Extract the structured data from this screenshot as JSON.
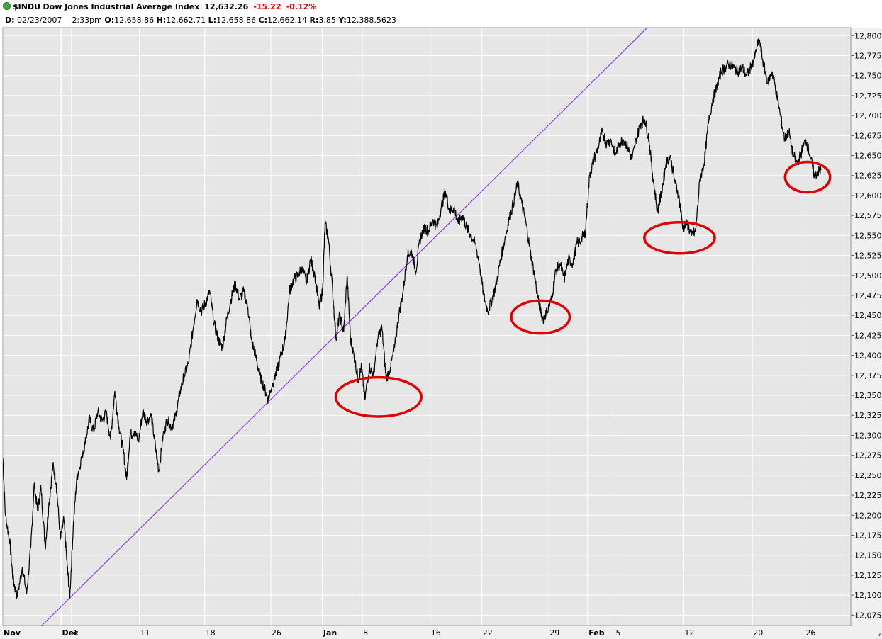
{
  "header": {
    "symbol": "$INDU",
    "name": "Dow Jones Industrial Average Index",
    "last": "12,632.26",
    "change": "-15.22",
    "change_pct": "-0.12%",
    "date": "02/23/2007",
    "time": "2:33pm",
    "open": "12,658.86",
    "high": "12,662.71",
    "low": "12,658.86",
    "close": "12,662.14",
    "range": "3.85",
    "y": "12,388.5623"
  },
  "chart_data": {
    "type": "line",
    "ylim": [
      12062,
      12810
    ],
    "xlim": [
      0,
      100
    ],
    "y_ticks": [
      {
        "value": 12800,
        "label": "12,800"
      },
      {
        "value": 12775,
        "label": "12,775"
      },
      {
        "value": 12750,
        "label": "12,750"
      },
      {
        "value": 12725,
        "label": "12,725"
      },
      {
        "value": 12700,
        "label": "12,700"
      },
      {
        "value": 12675,
        "label": "12,675"
      },
      {
        "value": 12650,
        "label": "12,650"
      },
      {
        "value": 12625,
        "label": "12,625"
      },
      {
        "value": 12600,
        "label": "12,600"
      },
      {
        "value": 12575,
        "label": "12,575"
      },
      {
        "value": 12550,
        "label": "12,550"
      },
      {
        "value": 12525,
        "label": "12,525"
      },
      {
        "value": 12500,
        "label": "12,500"
      },
      {
        "value": 12475,
        "label": "12,475"
      },
      {
        "value": 12450,
        "label": "12,450"
      },
      {
        "value": 12425,
        "label": "12,425"
      },
      {
        "value": 12400,
        "label": "12,400"
      },
      {
        "value": 12375,
        "label": "12,375"
      },
      {
        "value": 12350,
        "label": "12,350"
      },
      {
        "value": 12325,
        "label": "12,325"
      },
      {
        "value": 12300,
        "label": "12,300"
      },
      {
        "value": 12275,
        "label": "12,275"
      },
      {
        "value": 12250,
        "label": "12,250"
      },
      {
        "value": 12225,
        "label": "12,225"
      },
      {
        "value": 12200,
        "label": "12,200"
      },
      {
        "value": 12175,
        "label": "12,175"
      },
      {
        "value": 12150,
        "label": "12,150"
      },
      {
        "value": 12125,
        "label": "12,125"
      },
      {
        "value": 12100,
        "label": "12,100"
      },
      {
        "value": 12075,
        "label": "12,075"
      }
    ],
    "x_ticks": [
      {
        "x": 0.0,
        "label": "Nov",
        "bold": true
      },
      {
        "x": 6.9,
        "label": "Dec",
        "bold": true
      },
      {
        "x": 8.1,
        "label": "4",
        "bold": false
      },
      {
        "x": 16.1,
        "label": "11",
        "bold": false
      },
      {
        "x": 23.8,
        "label": "18",
        "bold": false
      },
      {
        "x": 31.6,
        "label": "26",
        "bold": false
      },
      {
        "x": 37.7,
        "label": "Jan",
        "bold": true
      },
      {
        "x": 42.4,
        "label": "8",
        "bold": false
      },
      {
        "x": 50.4,
        "label": "16",
        "bold": false
      },
      {
        "x": 56.5,
        "label": "22",
        "bold": false
      },
      {
        "x": 64.4,
        "label": "29",
        "bold": false
      },
      {
        "x": 69.0,
        "label": "Feb",
        "bold": true
      },
      {
        "x": 72.2,
        "label": "5",
        "bold": false
      },
      {
        "x": 80.3,
        "label": "12",
        "bold": false
      },
      {
        "x": 88.4,
        "label": "20",
        "bold": false
      },
      {
        "x": 94.6,
        "label": "26",
        "bold": false
      }
    ],
    "series": [
      {
        "values": [
          [
            0,
            12272
          ],
          [
            0.3,
            12200
          ],
          [
            0.8,
            12168
          ],
          [
            1.2,
            12120
          ],
          [
            1.7,
            12098
          ],
          [
            2.3,
            12135
          ],
          [
            2.8,
            12102
          ],
          [
            3.3,
            12160
          ],
          [
            3.7,
            12240
          ],
          [
            4.1,
            12205
          ],
          [
            4.5,
            12235
          ],
          [
            5.0,
            12160
          ],
          [
            5.4,
            12210
          ],
          [
            5.9,
            12262
          ],
          [
            6.3,
            12240
          ],
          [
            6.8,
            12170
          ],
          [
            7.2,
            12195
          ],
          [
            7.6,
            12135
          ],
          [
            7.9,
            12098
          ],
          [
            8.3,
            12185
          ],
          [
            8.7,
            12245
          ],
          [
            9.2,
            12268
          ],
          [
            9.7,
            12290
          ],
          [
            10.2,
            12320
          ],
          [
            10.7,
            12305
          ],
          [
            11.2,
            12330
          ],
          [
            11.7,
            12318
          ],
          [
            12.2,
            12328
          ],
          [
            12.7,
            12295
          ],
          [
            13.2,
            12355
          ],
          [
            13.7,
            12310
          ],
          [
            14.2,
            12282
          ],
          [
            14.6,
            12245
          ],
          [
            15.0,
            12300
          ],
          [
            15.5,
            12305
          ],
          [
            16.0,
            12292
          ],
          [
            16.5,
            12330
          ],
          [
            17.0,
            12318
          ],
          [
            17.5,
            12325
          ],
          [
            18.0,
            12285
          ],
          [
            18.4,
            12255
          ],
          [
            18.9,
            12300
          ],
          [
            19.4,
            12320
          ],
          [
            19.9,
            12310
          ],
          [
            20.4,
            12325
          ],
          [
            20.9,
            12355
          ],
          [
            21.4,
            12375
          ],
          [
            21.9,
            12390
          ],
          [
            22.4,
            12430
          ],
          [
            22.9,
            12470
          ],
          [
            23.4,
            12455
          ],
          [
            23.9,
            12465
          ],
          [
            24.4,
            12480
          ],
          [
            24.9,
            12440
          ],
          [
            25.4,
            12420
          ],
          [
            25.9,
            12410
          ],
          [
            26.4,
            12445
          ],
          [
            26.9,
            12470
          ],
          [
            27.4,
            12490
          ],
          [
            27.9,
            12470
          ],
          [
            28.4,
            12480
          ],
          [
            28.9,
            12460
          ],
          [
            29.3,
            12420
          ],
          [
            29.8,
            12400
          ],
          [
            30.3,
            12375
          ],
          [
            30.8,
            12360
          ],
          [
            31.3,
            12345
          ],
          [
            31.8,
            12365
          ],
          [
            32.3,
            12380
          ],
          [
            32.8,
            12400
          ],
          [
            33.3,
            12420
          ],
          [
            33.8,
            12480
          ],
          [
            34.3,
            12495
          ],
          [
            34.8,
            12500
          ],
          [
            35.3,
            12510
          ],
          [
            35.8,
            12490
          ],
          [
            36.3,
            12520
          ],
          [
            36.8,
            12500
          ],
          [
            37.3,
            12460
          ],
          [
            37.7,
            12480
          ],
          [
            38.0,
            12565
          ],
          [
            38.4,
            12545
          ],
          [
            38.9,
            12480
          ],
          [
            39.3,
            12420
          ],
          [
            39.7,
            12450
          ],
          [
            40.2,
            12430
          ],
          [
            40.6,
            12500
          ],
          [
            41.0,
            12420
          ],
          [
            41.5,
            12395
          ],
          [
            41.9,
            12370
          ],
          [
            42.3,
            12385
          ],
          [
            42.7,
            12345
          ],
          [
            43.2,
            12385
          ],
          [
            43.7,
            12375
          ],
          [
            44.2,
            12420
          ],
          [
            44.7,
            12435
          ],
          [
            45.2,
            12370
          ],
          [
            45.7,
            12385
          ],
          [
            46.2,
            12410
          ],
          [
            46.7,
            12450
          ],
          [
            47.2,
            12480
          ],
          [
            47.7,
            12525
          ],
          [
            48.2,
            12530
          ],
          [
            48.7,
            12505
          ],
          [
            49.2,
            12545
          ],
          [
            49.7,
            12560
          ],
          [
            50.2,
            12555
          ],
          [
            50.7,
            12570
          ],
          [
            51.2,
            12560
          ],
          [
            51.7,
            12585
          ],
          [
            52.2,
            12605
          ],
          [
            52.7,
            12580
          ],
          [
            53.2,
            12585
          ],
          [
            53.7,
            12565
          ],
          [
            54.2,
            12575
          ],
          [
            54.7,
            12560
          ],
          [
            55.2,
            12550
          ],
          [
            55.7,
            12540
          ],
          [
            56.2,
            12515
          ],
          [
            56.7,
            12475
          ],
          [
            57.2,
            12455
          ],
          [
            57.7,
            12470
          ],
          [
            58.2,
            12490
          ],
          [
            58.7,
            12520
          ],
          [
            59.2,
            12545
          ],
          [
            59.7,
            12570
          ],
          [
            60.2,
            12590
          ],
          [
            60.7,
            12615
          ],
          [
            61.2,
            12590
          ],
          [
            61.7,
            12565
          ],
          [
            62.2,
            12530
          ],
          [
            62.7,
            12500
          ],
          [
            63.2,
            12465
          ],
          [
            63.7,
            12445
          ],
          [
            64.2,
            12455
          ],
          [
            64.7,
            12470
          ],
          [
            65.2,
            12505
          ],
          [
            65.7,
            12515
          ],
          [
            66.2,
            12495
          ],
          [
            66.7,
            12520
          ],
          [
            67.2,
            12515
          ],
          [
            67.7,
            12540
          ],
          [
            68.2,
            12545
          ],
          [
            68.7,
            12555
          ],
          [
            69.2,
            12625
          ],
          [
            69.7,
            12645
          ],
          [
            70.2,
            12660
          ],
          [
            70.7,
            12680
          ],
          [
            71.2,
            12665
          ],
          [
            71.7,
            12670
          ],
          [
            72.2,
            12650
          ],
          [
            72.7,
            12665
          ],
          [
            73.2,
            12670
          ],
          [
            73.7,
            12660
          ],
          [
            74.2,
            12645
          ],
          [
            74.7,
            12670
          ],
          [
            75.2,
            12690
          ],
          [
            75.7,
            12695
          ],
          [
            76.2,
            12670
          ],
          [
            76.7,
            12620
          ],
          [
            77.2,
            12580
          ],
          [
            77.7,
            12605
          ],
          [
            78.2,
            12640
          ],
          [
            78.7,
            12650
          ],
          [
            79.2,
            12620
          ],
          [
            79.7,
            12600
          ],
          [
            80.2,
            12560
          ],
          [
            80.7,
            12565
          ],
          [
            81.2,
            12550
          ],
          [
            81.7,
            12555
          ],
          [
            82.2,
            12620
          ],
          [
            82.7,
            12640
          ],
          [
            83.2,
            12690
          ],
          [
            83.7,
            12720
          ],
          [
            84.2,
            12735
          ],
          [
            84.7,
            12755
          ],
          [
            85.2,
            12760
          ],
          [
            85.7,
            12765
          ],
          [
            86.2,
            12760
          ],
          [
            86.7,
            12755
          ],
          [
            87.2,
            12760
          ],
          [
            87.7,
            12750
          ],
          [
            88.2,
            12760
          ],
          [
            88.7,
            12775
          ],
          [
            89.2,
            12795
          ],
          [
            89.7,
            12765
          ],
          [
            90.2,
            12740
          ],
          [
            90.7,
            12755
          ],
          [
            91.2,
            12730
          ],
          [
            91.7,
            12700
          ],
          [
            92.2,
            12670
          ],
          [
            92.7,
            12680
          ],
          [
            93.2,
            12650
          ],
          [
            93.7,
            12640
          ],
          [
            94.2,
            12655
          ],
          [
            94.7,
            12670
          ],
          [
            95.2,
            12650
          ],
          [
            95.7,
            12625
          ],
          [
            96.2,
            12630
          ],
          [
            96.5,
            12632
          ]
        ]
      }
    ],
    "trendline": {
      "from": [
        4.6,
        12062
      ],
      "to": [
        76.0,
        12810
      ]
    },
    "circles": [
      {
        "cx": 44.3,
        "cy": 12348,
        "rx": 5.05,
        "ry": 24.5
      },
      {
        "cx": 63.4,
        "cy": 12448,
        "rx": 3.45,
        "ry": 20.5
      },
      {
        "cx": 79.8,
        "cy": 12547,
        "rx": 4.15,
        "ry": 19.5
      },
      {
        "cx": 94.9,
        "cy": 12623,
        "rx": 2.65,
        "ry": 19.0
      }
    ],
    "grid": true
  }
}
